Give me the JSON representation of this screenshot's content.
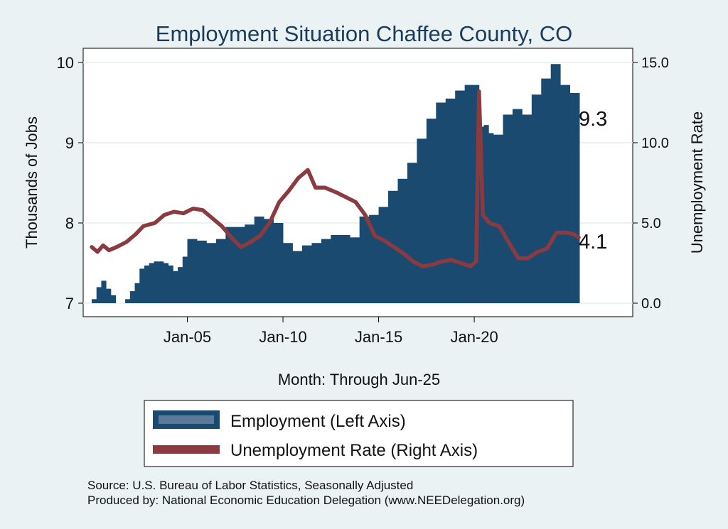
{
  "chart_data": {
    "type": "bar+line",
    "title": "Employment Situation Chaffee  County, CO",
    "xlabel": "Month: Through Jun-25",
    "ylabel_left": "Thousands of Jobs",
    "ylabel_right": "Unemployment Rate",
    "ylim_left": [
      7,
      10
    ],
    "ylim_right": [
      0,
      15
    ],
    "yticks_left": [
      "7",
      "8",
      "9",
      "10"
    ],
    "yticks_right": [
      "0.0",
      "5.0",
      "10.0",
      "15.0"
    ],
    "x_tick_labels": [
      "Jan-05",
      "Jan-10",
      "Jan-15",
      "Jan-20"
    ],
    "x_tick_years": [
      2005,
      2010,
      2015,
      2020
    ],
    "x_range": [
      2000.0,
      2025.46
    ],
    "employment_end_label": "9.3",
    "unemployment_end_label": "4.1",
    "grid": true,
    "legend_placement": "bottom",
    "series": [
      {
        "name": "Employment (Left Axis)",
        "axis": "left",
        "kind": "bar",
        "color": "#1b4a70",
        "points": [
          [
            2000.0,
            7.05
          ],
          [
            2000.25,
            7.2
          ],
          [
            2000.5,
            7.28
          ],
          [
            2000.75,
            7.18
          ],
          [
            2001.0,
            7.1
          ],
          [
            2001.25,
            7.0
          ],
          [
            2001.5,
            6.96
          ],
          [
            2001.75,
            7.05
          ],
          [
            2002.0,
            7.15
          ],
          [
            2002.25,
            7.25
          ],
          [
            2002.5,
            7.43
          ],
          [
            2002.75,
            7.47
          ],
          [
            2003.0,
            7.5
          ],
          [
            2003.25,
            7.52
          ],
          [
            2003.5,
            7.52
          ],
          [
            2003.75,
            7.5
          ],
          [
            2004.0,
            7.47
          ],
          [
            2004.25,
            7.4
          ],
          [
            2004.5,
            7.45
          ],
          [
            2004.75,
            7.58
          ],
          [
            2005.0,
            7.8
          ],
          [
            2005.5,
            7.78
          ],
          [
            2006.0,
            7.75
          ],
          [
            2006.5,
            7.8
          ],
          [
            2007.0,
            7.95
          ],
          [
            2007.5,
            7.95
          ],
          [
            2008.0,
            7.98
          ],
          [
            2008.5,
            8.08
          ],
          [
            2009.0,
            8.05
          ],
          [
            2009.5,
            8.0
          ],
          [
            2010.0,
            7.75
          ],
          [
            2010.5,
            7.65
          ],
          [
            2011.0,
            7.72
          ],
          [
            2011.5,
            7.75
          ],
          [
            2012.0,
            7.8
          ],
          [
            2012.5,
            7.85
          ],
          [
            2013.0,
            7.85
          ],
          [
            2013.5,
            7.82
          ],
          [
            2014.0,
            8.08
          ],
          [
            2014.5,
            8.1
          ],
          [
            2015.0,
            8.2
          ],
          [
            2015.5,
            8.4
          ],
          [
            2016.0,
            8.55
          ],
          [
            2016.5,
            8.75
          ],
          [
            2017.0,
            9.05
          ],
          [
            2017.5,
            9.3
          ],
          [
            2018.0,
            9.5
          ],
          [
            2018.5,
            9.55
          ],
          [
            2019.0,
            9.65
          ],
          [
            2019.5,
            9.72
          ],
          [
            2019.9,
            9.72
          ],
          [
            2020.25,
            9.2
          ],
          [
            2020.5,
            9.22
          ],
          [
            2020.75,
            9.12
          ],
          [
            2021.0,
            9.1
          ],
          [
            2021.5,
            9.35
          ],
          [
            2022.0,
            9.42
          ],
          [
            2022.5,
            9.35
          ],
          [
            2023.0,
            9.6
          ],
          [
            2023.5,
            9.8
          ],
          [
            2024.0,
            9.98
          ],
          [
            2024.5,
            9.72
          ],
          [
            2025.0,
            9.62
          ],
          [
            2025.46,
            9.3
          ]
        ]
      },
      {
        "name": "Unemployment Rate (Right Axis)",
        "axis": "right",
        "kind": "line",
        "color": "#8b3a40",
        "points": [
          [
            2000.0,
            3.5
          ],
          [
            2000.3,
            3.2
          ],
          [
            2000.6,
            3.6
          ],
          [
            2000.9,
            3.3
          ],
          [
            2001.3,
            3.5
          ],
          [
            2001.8,
            3.8
          ],
          [
            2002.3,
            4.3
          ],
          [
            2002.7,
            4.8
          ],
          [
            2003.3,
            5.0
          ],
          [
            2003.8,
            5.5
          ],
          [
            2004.3,
            5.7
          ],
          [
            2004.8,
            5.6
          ],
          [
            2005.3,
            5.9
          ],
          [
            2005.8,
            5.8
          ],
          [
            2006.3,
            5.3
          ],
          [
            2006.8,
            4.8
          ],
          [
            2007.3,
            4.1
          ],
          [
            2007.8,
            3.5
          ],
          [
            2008.3,
            3.8
          ],
          [
            2008.8,
            4.2
          ],
          [
            2009.3,
            5.0
          ],
          [
            2009.8,
            6.3
          ],
          [
            2010.3,
            7.0
          ],
          [
            2010.8,
            7.8
          ],
          [
            2011.3,
            8.3
          ],
          [
            2011.7,
            7.2
          ],
          [
            2012.2,
            7.2
          ],
          [
            2012.8,
            6.9
          ],
          [
            2013.3,
            6.6
          ],
          [
            2013.8,
            6.3
          ],
          [
            2014.3,
            5.5
          ],
          [
            2014.8,
            4.2
          ],
          [
            2015.3,
            3.9
          ],
          [
            2015.8,
            3.5
          ],
          [
            2016.3,
            3.1
          ],
          [
            2016.8,
            2.6
          ],
          [
            2017.3,
            2.3
          ],
          [
            2017.8,
            2.4
          ],
          [
            2018.3,
            2.6
          ],
          [
            2018.8,
            2.7
          ],
          [
            2019.3,
            2.5
          ],
          [
            2019.8,
            2.3
          ],
          [
            2020.1,
            2.6
          ],
          [
            2020.25,
            13.2
          ],
          [
            2020.45,
            5.5
          ],
          [
            2020.8,
            5.0
          ],
          [
            2021.3,
            4.8
          ],
          [
            2021.8,
            3.8
          ],
          [
            2022.3,
            2.8
          ],
          [
            2022.8,
            2.8
          ],
          [
            2023.3,
            3.2
          ],
          [
            2023.8,
            3.4
          ],
          [
            2024.3,
            4.4
          ],
          [
            2024.8,
            4.4
          ],
          [
            2025.2,
            4.3
          ],
          [
            2025.46,
            4.1
          ]
        ]
      }
    ],
    "source_note": "Source: U.S. Bureau of Labor Statistics, Seasonally Adjusted",
    "produced_note": "Produced by: National Economic Education Delegation (www.NEEDelegation.org)"
  }
}
